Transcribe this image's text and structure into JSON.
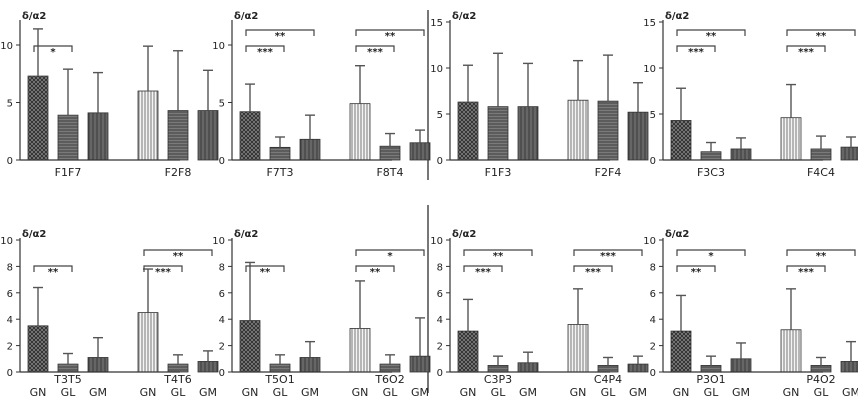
{
  "chart_data": [
    {
      "type": "bar",
      "ylabel": "δ/α2",
      "ylim": [
        0,
        12
      ],
      "yticks": [
        0,
        5,
        10
      ],
      "bar_labels": [],
      "groups": [
        {
          "label": "F1F7",
          "values": [
            7.3,
            3.9,
            4.1
          ],
          "errors": [
            11.4,
            7.9,
            7.6
          ],
          "brackets": [
            {
              "from": 0,
              "to": 1,
              "label": "*"
            }
          ]
        },
        {
          "label": "F2F8",
          "values": [
            6.0,
            4.3,
            4.3
          ],
          "errors": [
            9.9,
            9.5,
            7.8
          ],
          "brackets": []
        }
      ]
    },
    {
      "type": "bar",
      "ylabel": "δ/α2",
      "ylim": [
        0,
        12
      ],
      "yticks": [
        0,
        5,
        10
      ],
      "bar_labels": [],
      "groups": [
        {
          "label": "F7T3",
          "values": [
            4.2,
            1.1,
            1.8
          ],
          "errors": [
            6.6,
            2.0,
            3.9
          ],
          "brackets": [
            {
              "from": 0,
              "to": 1,
              "label": "***"
            },
            {
              "from": 0,
              "to": 2,
              "label": "**"
            }
          ]
        },
        {
          "label": "F8T4",
          "values": [
            4.9,
            1.2,
            1.5
          ],
          "errors": [
            8.2,
            2.3,
            2.6
          ],
          "brackets": [
            {
              "from": 0,
              "to": 1,
              "label": "***"
            },
            {
              "from": 0,
              "to": 2,
              "label": "**"
            }
          ]
        }
      ]
    },
    {
      "type": "bar",
      "ylabel": "δ/α2",
      "ylim": [
        0,
        15
      ],
      "yticks": [
        0,
        5,
        10,
        15
      ],
      "bar_labels": [],
      "groups": [
        {
          "label": "F1F3",
          "values": [
            6.3,
            5.8,
            5.8
          ],
          "errors": [
            10.3,
            11.6,
            10.5
          ],
          "brackets": []
        },
        {
          "label": "F2F4",
          "values": [
            6.5,
            6.4,
            5.2
          ],
          "errors": [
            10.8,
            11.4,
            8.4
          ],
          "brackets": []
        }
      ]
    },
    {
      "type": "bar",
      "ylabel": "δ/α2",
      "ylim": [
        0,
        15
      ],
      "yticks": [
        0,
        5,
        10,
        15
      ],
      "bar_labels": [],
      "groups": [
        {
          "label": "F3C3",
          "values": [
            4.3,
            0.9,
            1.2
          ],
          "errors": [
            7.8,
            1.9,
            2.4
          ],
          "brackets": [
            {
              "from": 0,
              "to": 1,
              "label": "***"
            },
            {
              "from": 0,
              "to": 2,
              "label": "**"
            }
          ]
        },
        {
          "label": "F4C4",
          "values": [
            4.6,
            1.2,
            1.4
          ],
          "errors": [
            8.2,
            2.6,
            2.5
          ],
          "brackets": [
            {
              "from": 0,
              "to": 1,
              "label": "***"
            },
            {
              "from": 0,
              "to": 2,
              "label": "**"
            }
          ]
        }
      ]
    },
    {
      "type": "bar",
      "ylabel": "δ/α2",
      "ylim": [
        0,
        10
      ],
      "yticks": [
        0,
        2,
        4,
        6,
        8,
        10
      ],
      "bar_labels": [
        "GN",
        "GL",
        "GM",
        "GN",
        "GL",
        "GM"
      ],
      "groups": [
        {
          "label": "T3T5",
          "values": [
            3.5,
            0.6,
            1.1
          ],
          "errors": [
            6.4,
            1.4,
            2.6
          ],
          "brackets": [
            {
              "from": 0,
              "to": 1,
              "label": "**"
            }
          ]
        },
        {
          "label": "T4T6",
          "values": [
            4.5,
            0.6,
            0.8
          ],
          "errors": [
            7.8,
            1.3,
            1.6
          ],
          "brackets": [
            {
              "from": 0,
              "to": 1,
              "label": "***"
            },
            {
              "from": 0,
              "to": 2,
              "label": "**"
            }
          ]
        }
      ]
    },
    {
      "type": "bar",
      "ylabel": "δ/α2",
      "ylim": [
        0,
        10
      ],
      "yticks": [
        0,
        2,
        4,
        6,
        8,
        10
      ],
      "bar_labels": [
        "GN",
        "GL",
        "GM",
        "GN",
        "GL",
        "GM"
      ],
      "groups": [
        {
          "label": "T5O1",
          "values": [
            3.9,
            0.6,
            1.1
          ],
          "errors": [
            8.3,
            1.3,
            2.3
          ],
          "brackets": [
            {
              "from": 0,
              "to": 1,
              "label": "**"
            }
          ]
        },
        {
          "label": "T6O2",
          "values": [
            3.3,
            0.6,
            1.2
          ],
          "errors": [
            6.9,
            1.3,
            4.1
          ],
          "brackets": [
            {
              "from": 0,
              "to": 1,
              "label": "**"
            },
            {
              "from": 0,
              "to": 2,
              "label": "*"
            }
          ]
        }
      ]
    },
    {
      "type": "bar",
      "ylabel": "δ/α2",
      "ylim": [
        0,
        10
      ],
      "yticks": [
        0,
        2,
        4,
        6,
        8,
        10
      ],
      "bar_labels": [
        "GN",
        "GL",
        "GM",
        "GN",
        "GL",
        "GM"
      ],
      "groups": [
        {
          "label": "C3P3",
          "values": [
            3.1,
            0.5,
            0.7
          ],
          "errors": [
            5.5,
            1.2,
            1.5
          ],
          "brackets": [
            {
              "from": 0,
              "to": 1,
              "label": "***"
            },
            {
              "from": 0,
              "to": 2,
              "label": "**"
            }
          ]
        },
        {
          "label": "C4P4",
          "values": [
            3.6,
            0.5,
            0.6
          ],
          "errors": [
            6.3,
            1.1,
            1.2
          ],
          "brackets": [
            {
              "from": 0,
              "to": 1,
              "label": "***"
            },
            {
              "from": 0,
              "to": 2,
              "label": "***"
            }
          ]
        }
      ]
    },
    {
      "type": "bar",
      "ylabel": "δ/α2",
      "ylim": [
        0,
        10
      ],
      "yticks": [
        0,
        2,
        4,
        6,
        8,
        10
      ],
      "bar_labels": [
        "GN",
        "GL",
        "GM",
        "GN",
        "GL",
        "GM"
      ],
      "groups": [
        {
          "label": "P3O1",
          "values": [
            3.1,
            0.5,
            1.0
          ],
          "errors": [
            5.8,
            1.2,
            2.2
          ],
          "brackets": [
            {
              "from": 0,
              "to": 1,
              "label": "**"
            },
            {
              "from": 0,
              "to": 2,
              "label": "*"
            }
          ]
        },
        {
          "label": "P4O2",
          "values": [
            3.2,
            0.5,
            0.8
          ],
          "errors": [
            6.3,
            1.1,
            2.3
          ],
          "brackets": [
            {
              "from": 0,
              "to": 1,
              "label": "***"
            },
            {
              "from": 0,
              "to": 2,
              "label": "**"
            }
          ]
        }
      ]
    }
  ]
}
